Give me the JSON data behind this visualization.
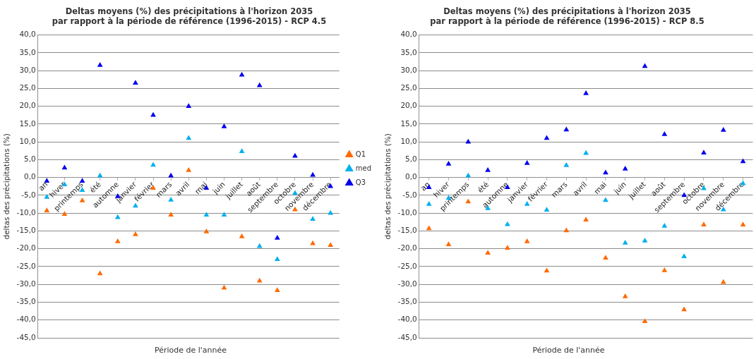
{
  "chart_data": [
    {
      "type": "scatter",
      "title": "Deltas moyens (%) des précipitations à l'horizon 2035\npar rapport à la période de référence (1996-2015) - RCP 4.5",
      "xlabel": "Période de l'année",
      "ylabel": "deltas des précipitations (%)",
      "categories": [
        "an",
        "hiver",
        "printemps",
        "été",
        "automne",
        "janvier",
        "février",
        "mars",
        "avril",
        "mai",
        "juin",
        "juillet",
        "août",
        "septembre",
        "octobre",
        "novembre",
        "décembre"
      ],
      "series": [
        {
          "name": "Q1",
          "color": "#ff6a00",
          "values": [
            -9.3,
            -10.3,
            -6.5,
            -27,
            -18,
            -16,
            -3,
            -10.5,
            2,
            -15.2,
            -31,
            -16.6,
            -29,
            -31.7,
            -9,
            -18.5,
            -19
          ]
        },
        {
          "name": "med",
          "color": "#00b0f0",
          "values": [
            -5.5,
            -2,
            -3.6,
            0.5,
            -11.2,
            -8,
            3.5,
            -6.3,
            11,
            -10.5,
            -10.5,
            7.3,
            -19.3,
            -23,
            -4.4,
            -11.7,
            -10
          ]
        },
        {
          "name": "Q3",
          "color": "#0000ee",
          "values": [
            -1,
            2.7,
            -1,
            31.5,
            -5.3,
            26.5,
            17.5,
            0.5,
            20,
            -3,
            14.3,
            28.8,
            25.8,
            -17,
            6,
            0.7,
            -2.5
          ]
        }
      ],
      "ylim": [
        -45,
        40
      ],
      "yticks": [
        {
          "value": -45,
          "label": "-45,0"
        },
        {
          "value": -40,
          "label": "-40,0"
        },
        {
          "value": -35,
          "label": "-35,0"
        },
        {
          "value": -30,
          "label": "-30,0"
        },
        {
          "value": -25,
          "label": "-25,0"
        },
        {
          "value": -20,
          "label": "-20,0"
        },
        {
          "value": -15,
          "label": "-15,0"
        },
        {
          "value": -10,
          "label": "-10,0"
        },
        {
          "value": -5,
          "label": "-5,0"
        },
        {
          "value": 0,
          "label": "0,0"
        },
        {
          "value": 5,
          "label": "5,0"
        },
        {
          "value": 10,
          "label": "10,0"
        },
        {
          "value": 15,
          "label": "15,0"
        },
        {
          "value": 20,
          "label": "20,0"
        },
        {
          "value": 25,
          "label": "25,0"
        },
        {
          "value": 30,
          "label": "30,0"
        },
        {
          "value": 35,
          "label": "35,0"
        },
        {
          "value": 40,
          "label": "40,0"
        }
      ],
      "grid": "y",
      "legend": "right",
      "marker": "triangle"
    },
    {
      "type": "scatter",
      "title": "Deltas moyens (%) des précipitations à l'horizon 2035\npar rapport à la période de référence (1996-2015) - RCP 8.5",
      "xlabel": "Période de l'année",
      "ylabel": "deltas des précipitations (%)",
      "categories": [
        "an",
        "hiver",
        "printemps",
        "été",
        "automne",
        "janvier",
        "février",
        "mars",
        "avril",
        "mai",
        "juin",
        "juillet",
        "août",
        "septembre",
        "octobre",
        "novembre",
        "décembre"
      ],
      "series": [
        {
          "color": "#ff6a00",
          "values": [
            -14.3,
            -18.8,
            -6.8,
            -21.2,
            -19.8,
            -18,
            -26.2,
            -14.9,
            -11.9,
            -22.6,
            -33.4,
            -40.4,
            -26.1,
            -37.1,
            -13.3,
            -29.4,
            -13.3
          ]
        },
        {
          "color": "#00b0f0",
          "values": [
            -7.5,
            -5.8,
            0.5,
            -8.7,
            -13.2,
            -7.5,
            -9.1,
            3.4,
            6.8,
            -6.4,
            -18.4,
            -17.8,
            -13.6,
            -22.2,
            -3.1,
            -9,
            -1.7
          ]
        },
        {
          "color": "#0000ee",
          "values": [
            -2.8,
            3.8,
            10,
            2,
            -2.8,
            4,
            11,
            13.4,
            23.6,
            1.3,
            2.4,
            31.2,
            12.1,
            -5,
            6.9,
            13.3,
            4.5
          ]
        }
      ],
      "ylim": [
        -45,
        40
      ],
      "yticks": [
        {
          "value": -45,
          "label": "-45,0"
        },
        {
          "value": -40,
          "label": "-40,0"
        },
        {
          "value": -35,
          "label": "-35,0"
        },
        {
          "value": -30,
          "label": "-30,0"
        },
        {
          "value": -25,
          "label": "-25,0"
        },
        {
          "value": -20,
          "label": "-20,0"
        },
        {
          "value": -15,
          "label": "-15,0"
        },
        {
          "value": -10,
          "label": "-10,0"
        },
        {
          "value": -5,
          "label": "-5,0"
        },
        {
          "value": 0,
          "label": "0,0"
        },
        {
          "value": 5,
          "label": "5,0"
        },
        {
          "value": 10,
          "label": "10,0"
        },
        {
          "value": 15,
          "label": "15,0"
        },
        {
          "value": 20,
          "label": "20,0"
        },
        {
          "value": 25,
          "label": "25,0"
        },
        {
          "value": 30,
          "label": "30,0"
        },
        {
          "value": 35,
          "label": "35,0"
        },
        {
          "value": 40,
          "label": "40,0"
        }
      ],
      "grid": "y",
      "marker": "triangle"
    }
  ]
}
